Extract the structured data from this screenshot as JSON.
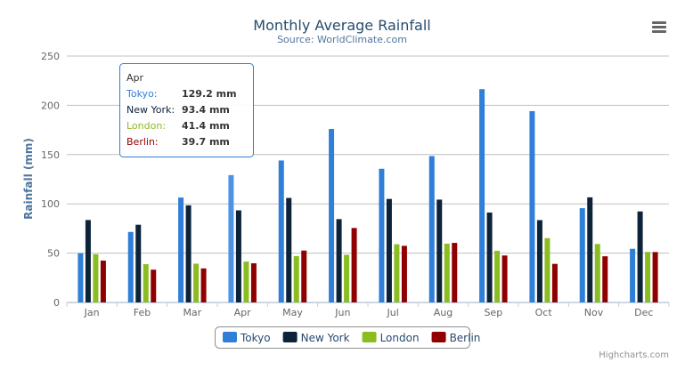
{
  "chart_data": {
    "type": "bar",
    "title": "Monthly Average Rainfall",
    "subtitle": "Source: WorldClimate.com",
    "xlabel": "",
    "ylabel": "Rainfall (mm)",
    "ylim": [
      0,
      250
    ],
    "yticks": [
      0,
      50,
      100,
      150,
      200,
      250
    ],
    "grid": true,
    "legend_position": "bottom-center",
    "categories": [
      "Jan",
      "Feb",
      "Mar",
      "Apr",
      "May",
      "Jun",
      "Jul",
      "Aug",
      "Sep",
      "Oct",
      "Nov",
      "Dec"
    ],
    "series": [
      {
        "name": "Tokyo",
        "color": "#2f7ed8",
        "values": [
          49.9,
          71.5,
          106.4,
          129.2,
          144.0,
          176.0,
          135.6,
          148.5,
          216.4,
          194.1,
          95.6,
          54.4
        ]
      },
      {
        "name": "New York",
        "color": "#0d233a",
        "values": [
          83.6,
          78.8,
          98.5,
          93.4,
          106.0,
          84.5,
          105.0,
          104.3,
          91.2,
          83.5,
          106.6,
          92.3
        ]
      },
      {
        "name": "London",
        "color": "#8bbc21",
        "values": [
          48.9,
          38.8,
          39.3,
          41.4,
          47.0,
          48.3,
          59.0,
          59.6,
          52.4,
          65.2,
          59.3,
          51.2
        ]
      },
      {
        "name": "Berlin",
        "color": "#910000",
        "values": [
          42.4,
          33.2,
          34.5,
          39.7,
          52.6,
          75.5,
          57.4,
          60.4,
          47.6,
          39.1,
          46.8,
          51.1
        ]
      }
    ],
    "tooltip": {
      "category": "Apr",
      "rows": [
        {
          "name": "Tokyo:",
          "value": "129.2 mm"
        },
        {
          "name": "New York:",
          "value": "93.4 mm"
        },
        {
          "name": "London:",
          "value": "41.4 mm"
        },
        {
          "name": "Berlin:",
          "value": "39.7 mm"
        }
      ]
    }
  },
  "credits": "Highcharts.com",
  "menu_icon": "hamburger-menu-icon"
}
